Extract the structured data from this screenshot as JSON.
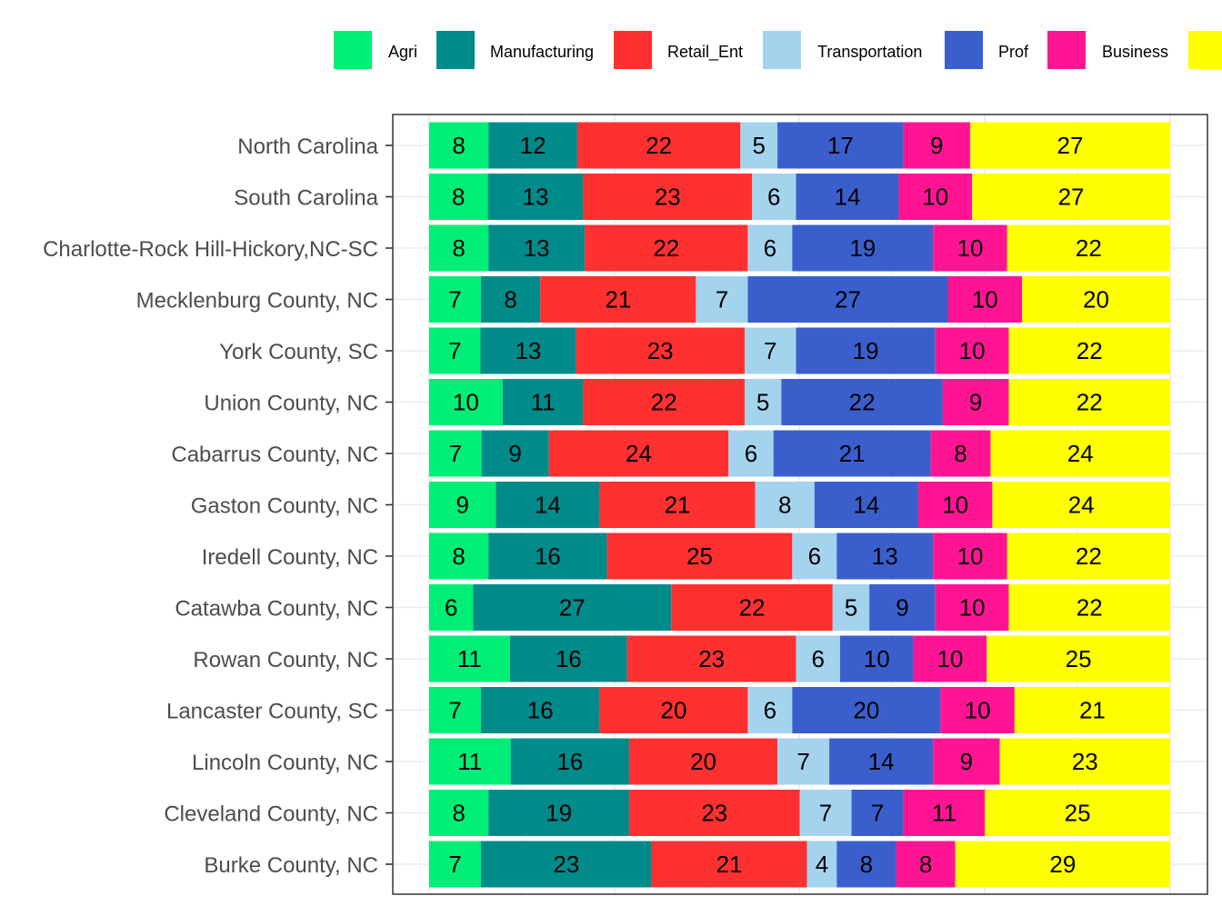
{
  "chart_data": {
    "type": "bar",
    "orientation": "horizontal",
    "stacked": true,
    "normalized": true,
    "title": "",
    "xlabel": "",
    "ylabel": "",
    "legend_position": "top",
    "grid": true,
    "categories": [
      "North Carolina",
      "South Carolina",
      "Charlotte-Rock Hill-Hickory,NC-SC",
      "Mecklenburg County, NC",
      "York County, SC",
      "Union County, NC",
      "Cabarrus County, NC",
      "Gaston County, NC",
      "Iredell County, NC",
      "Catawba County, NC",
      "Rowan County, NC",
      "Lancaster County, SC",
      "Lincoln County, NC",
      "Cleveland County, NC",
      "Burke County, NC"
    ],
    "series": [
      {
        "name": "Agri",
        "color": "#00EE76",
        "values": [
          8,
          8,
          8,
          7,
          7,
          10,
          7,
          9,
          8,
          6,
          11,
          7,
          11,
          8,
          7
        ]
      },
      {
        "name": "Manufacturing",
        "color": "#008B8B",
        "values": [
          12,
          13,
          13,
          8,
          13,
          11,
          9,
          14,
          16,
          27,
          16,
          16,
          16,
          19,
          23
        ]
      },
      {
        "name": "Retail_Ent",
        "color": "#FF3030",
        "values": [
          22,
          23,
          22,
          21,
          23,
          22,
          24,
          21,
          25,
          22,
          23,
          20,
          20,
          23,
          21
        ]
      },
      {
        "name": "Transportation",
        "color": "#A4D3EE",
        "values": [
          5,
          6,
          6,
          7,
          7,
          5,
          6,
          8,
          6,
          5,
          6,
          6,
          7,
          7,
          4
        ]
      },
      {
        "name": "Prof",
        "color": "#3A5FCD",
        "values": [
          17,
          14,
          19,
          27,
          19,
          22,
          21,
          14,
          13,
          9,
          10,
          20,
          14,
          7,
          8
        ]
      },
      {
        "name": "Business",
        "color": "#FF1493",
        "values": [
          9,
          10,
          10,
          10,
          10,
          9,
          8,
          10,
          10,
          10,
          10,
          10,
          9,
          11,
          8
        ]
      },
      {
        "color": "#FFFF00",
        "values": [
          27,
          27,
          22,
          20,
          22,
          22,
          24,
          24,
          22,
          22,
          25,
          21,
          23,
          25,
          29
        ]
      }
    ]
  }
}
